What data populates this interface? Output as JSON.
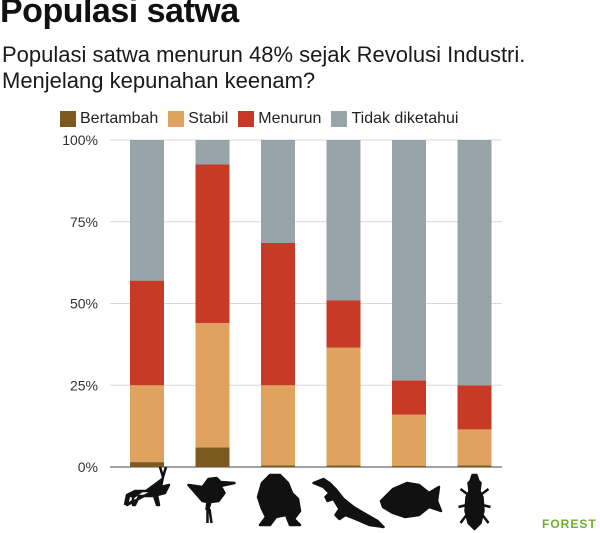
{
  "header": {
    "title": "Populasi satwa",
    "subtitle": "Populasi satwa menurun 48% sejak Revolusi Industri. Menjelang kepunahan keenam?"
  },
  "colors": {
    "Bertambah": "#7a5a1e",
    "Stabil": "#e0a35f",
    "Menurun": "#c63a26",
    "Tidak diketahui": "#97a4aa"
  },
  "icons": [
    "antelope-icon",
    "bird-icon",
    "frog-icon",
    "lizard-icon",
    "fish-icon",
    "insect-icon"
  ],
  "brand": "FOREST",
  "chart_data": {
    "type": "bar",
    "stacked": true,
    "categories": [
      "",
      "",
      "",
      "",
      "",
      ""
    ],
    "ylim": [
      0,
      100
    ],
    "yticks": [
      "0%",
      "25%",
      "50%",
      "75%",
      "100%"
    ],
    "grid": true,
    "legend": "top",
    "series": [
      {
        "name": "Bertambah",
        "values": [
          1.5,
          6,
          0.5,
          0.5,
          0.3,
          0.5
        ]
      },
      {
        "name": "Stabil",
        "values": [
          23.5,
          38,
          24.5,
          36,
          15.7,
          11
        ]
      },
      {
        "name": "Menurun",
        "values": [
          32,
          48.5,
          43.5,
          14.5,
          10.5,
          13.5
        ]
      },
      {
        "name": "Tidak diketahui",
        "values": [
          43,
          7.5,
          31.5,
          49,
          73.5,
          75
        ]
      }
    ]
  }
}
